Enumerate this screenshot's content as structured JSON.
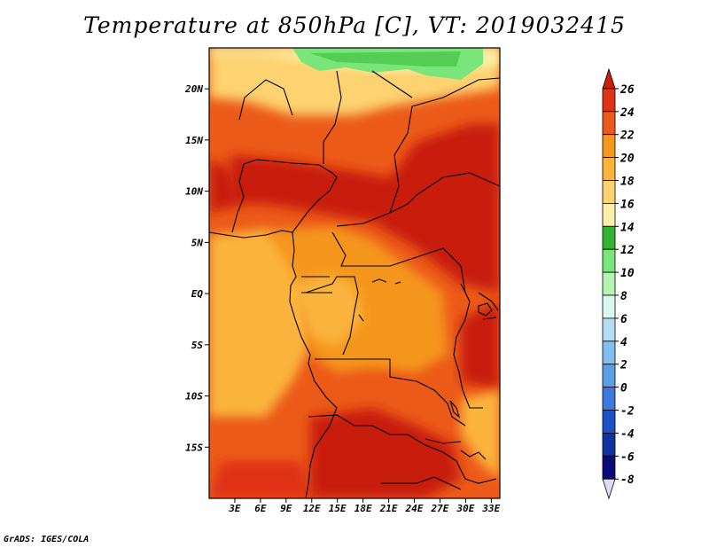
{
  "title": "Temperature at 850hPa [C], VT: 2019032415",
  "credit": "GrADS: IGES/COLA",
  "map": {
    "lon_range": [
      0,
      34
    ],
    "lat_range": [
      -20,
      24
    ],
    "lat_ticks": [
      {
        "value": 20,
        "label": "20N"
      },
      {
        "value": 15,
        "label": "15N"
      },
      {
        "value": 10,
        "label": "10N"
      },
      {
        "value": 5,
        "label": "5N"
      },
      {
        "value": 0,
        "label": "EQ"
      },
      {
        "value": -5,
        "label": "5S"
      },
      {
        "value": -10,
        "label": "10S"
      },
      {
        "value": -15,
        "label": "15S"
      }
    ],
    "lon_ticks": [
      {
        "value": 3,
        "label": "3E"
      },
      {
        "value": 6,
        "label": "6E"
      },
      {
        "value": 9,
        "label": "9E"
      },
      {
        "value": 12,
        "label": "12E"
      },
      {
        "value": 15,
        "label": "15E"
      },
      {
        "value": 18,
        "label": "18E"
      },
      {
        "value": 21,
        "label": "21E"
      },
      {
        "value": 24,
        "label": "24E"
      },
      {
        "value": 27,
        "label": "27E"
      },
      {
        "value": 30,
        "label": "30E"
      },
      {
        "value": 33,
        "label": "33E"
      }
    ]
  },
  "colorbar": {
    "levels": [
      "26",
      "24",
      "22",
      "20",
      "18",
      "16",
      "14",
      "12",
      "10",
      "8",
      "6",
      "4",
      "2",
      "0",
      "-2",
      "-4",
      "-6",
      "-8"
    ],
    "colors": [
      "#c81e0a",
      "#e03214",
      "#ec5a19",
      "#f5961e",
      "#fab43c",
      "#fdd270",
      "#fef0a8",
      "#32b432",
      "#78e678",
      "#b4f5b4",
      "#d9f7ee",
      "#b4dcf5",
      "#82bef0",
      "#5aa0e6",
      "#3c78e0",
      "#1e50c8",
      "#0f32a0",
      "#0a0a78",
      "#dcdcf5"
    ]
  }
}
